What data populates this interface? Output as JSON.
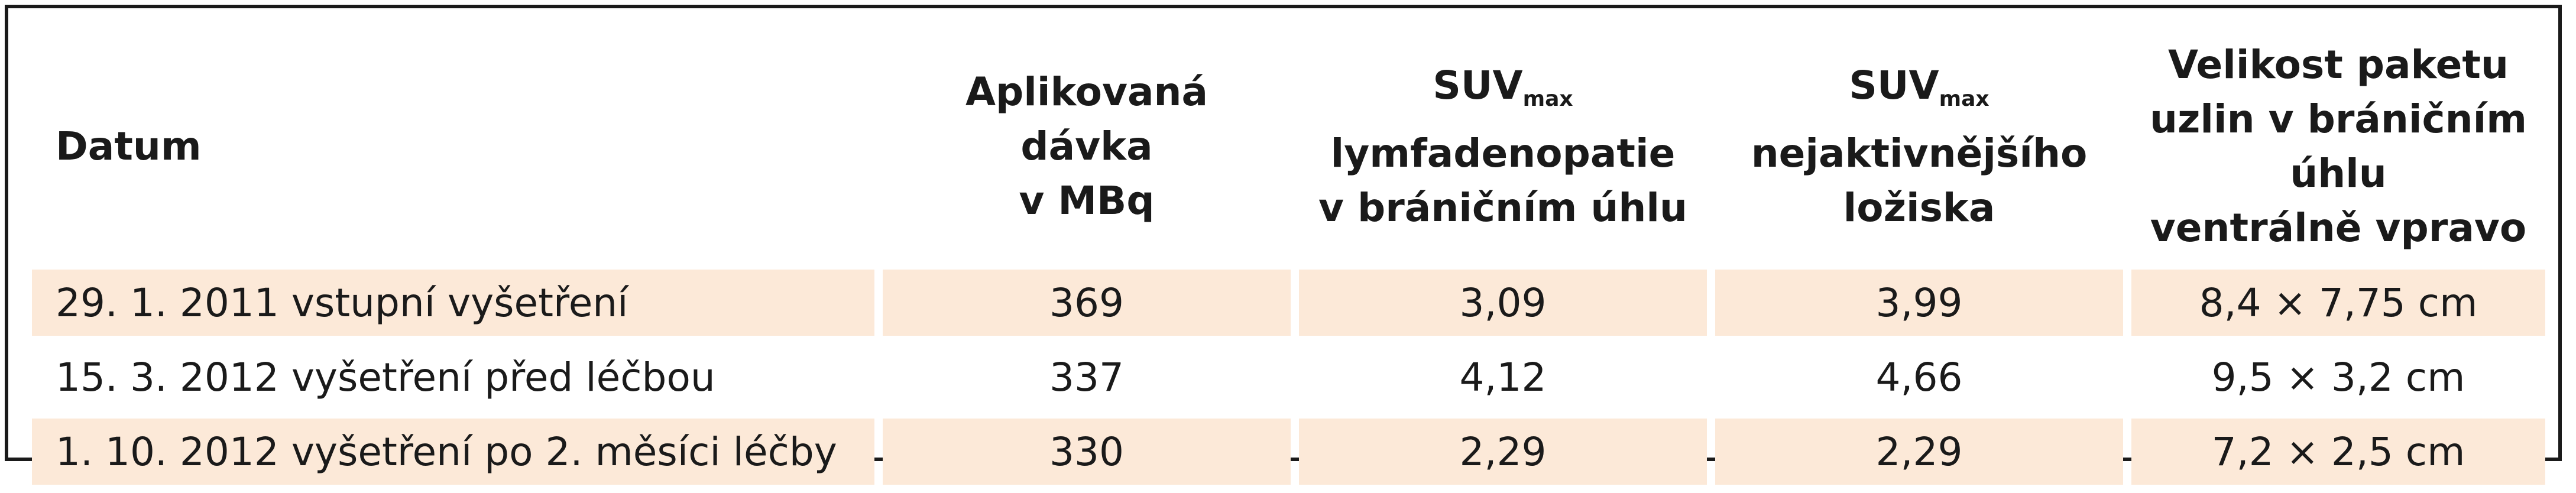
{
  "table": {
    "headers": {
      "date": "Datum",
      "dose_line1": "Aplikovaná dávka",
      "dose_line2": "v MBq",
      "suv_lymph_main": "SUV",
      "suv_lymph_sub": "max",
      "suv_lymph_line2": "lymfadenopatie",
      "suv_lymph_line3": "v bráničním úhlu",
      "suv_active_main": "SUV",
      "suv_active_sub": "max",
      "suv_active_line2": "nejaktivnějšího",
      "suv_active_line3": "ložiska",
      "size_line1": "Velikost paketu",
      "size_line2": "uzlin v bráničním úhlu",
      "size_line3": "ventrálně vpravo"
    },
    "rows": [
      {
        "date": "29. 1. 2011 vstupní vyšetření",
        "dose": "369",
        "suv_lymph": "3,09",
        "suv_active": "3,99",
        "size": "8,4 × 7,75 cm",
        "shaded": true
      },
      {
        "date": "15. 3. 2012 vyšetření před léčbou",
        "dose": "337",
        "suv_lymph": "4,12",
        "suv_active": "4,66",
        "size": "9,5 × 3,2 cm",
        "shaded": false
      },
      {
        "date": "1. 10. 2012 vyšetření po 2. měsíci léčby",
        "dose": "330",
        "suv_lymph": "2,29",
        "suv_active": "2,29",
        "size": "7,2 × 2,5 cm",
        "shaded": true
      }
    ],
    "colors": {
      "shade": "#fce9d8",
      "border": "#1a1a1a"
    }
  }
}
